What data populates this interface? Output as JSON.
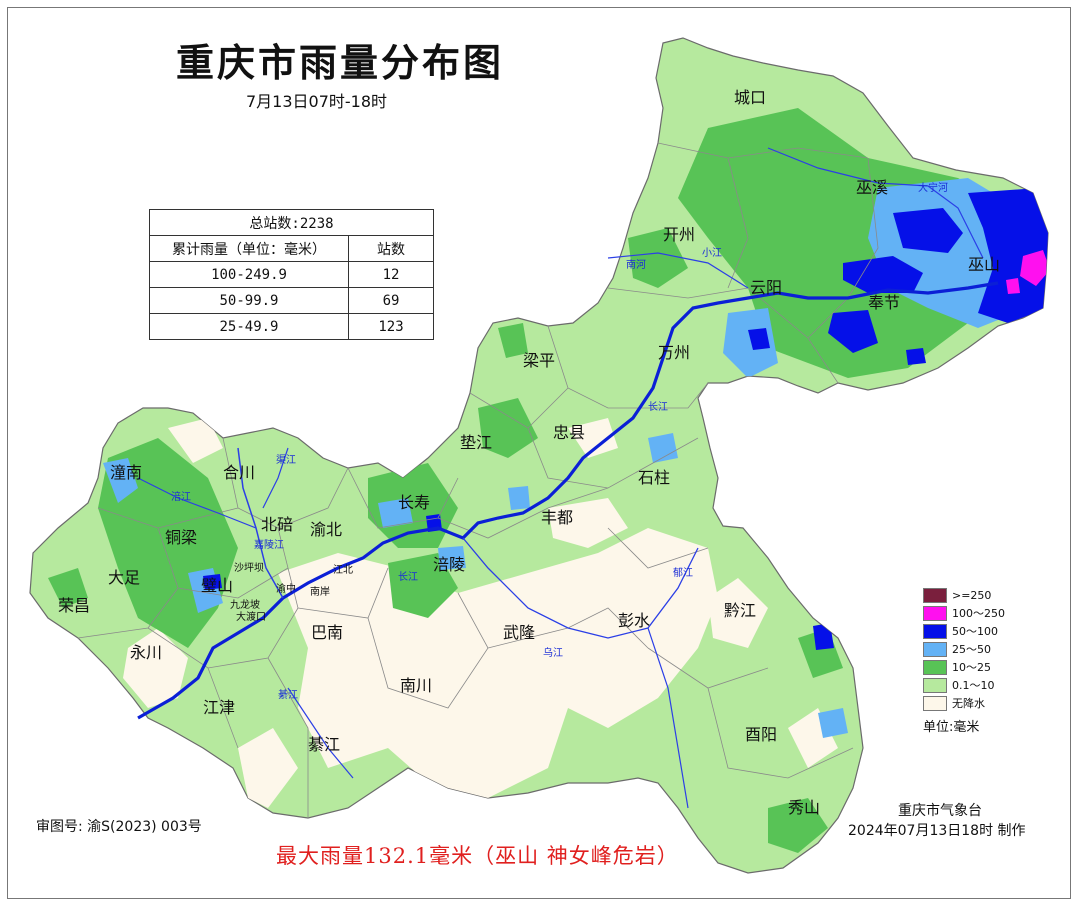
{
  "title": "重庆市雨量分布图",
  "subtitle": "7月13日07时-18时",
  "stats_table": {
    "total": "总站数:2238",
    "col_range": "累计雨量（单位：毫米）",
    "col_count": "站数",
    "rows": [
      {
        "range": "100-249.9",
        "count": "12"
      },
      {
        "range": "50-99.9",
        "count": "69"
      },
      {
        "range": "25-49.9",
        "count": "123"
      }
    ]
  },
  "legend": {
    "items": [
      {
        "label": ">=250",
        "color": "#7a1f3d"
      },
      {
        "label": "100～250",
        "color": "#ff10ef"
      },
      {
        "label": "50～100",
        "color": "#0510e8"
      },
      {
        "label": "25～50",
        "color": "#63b2f5"
      },
      {
        "label": "10～25",
        "color": "#58c356"
      },
      {
        "label": "0.1～10",
        "color": "#b6e99e"
      },
      {
        "label": "无降水",
        "color": "#fdf7ea"
      }
    ],
    "unit": "单位:毫米"
  },
  "districts": [
    "城口",
    "巫溪",
    "开州",
    "巫山",
    "云阳",
    "奉节",
    "梁平",
    "万州",
    "忠县",
    "垫江",
    "石柱",
    "潼南",
    "合川",
    "长寿",
    "丰都",
    "铜梁",
    "北碚",
    "渝北",
    "大足",
    "涪陵",
    "璧山",
    "荣昌",
    "巴南",
    "武隆",
    "彭水",
    "黔江",
    "永川",
    "南川",
    "江津",
    "綦江",
    "酉阳",
    "秀山",
    "沙坪坝",
    "江北",
    "渝中",
    "南岸",
    "九龙坡",
    "大渡口"
  ],
  "rivers": [
    "大宁河",
    "小江",
    "南河",
    "长江",
    "涪江",
    "嘉陵江",
    "渠江",
    "乌江",
    "綦江",
    "郁江"
  ],
  "footer": {
    "approval": "审图号: 渝S(2023) 003号",
    "org": "重庆市气象台",
    "made": "2024年07月13日18时 制作",
    "max_rain": "最大雨量132.1毫米（巫山 神女峰危岩）"
  }
}
